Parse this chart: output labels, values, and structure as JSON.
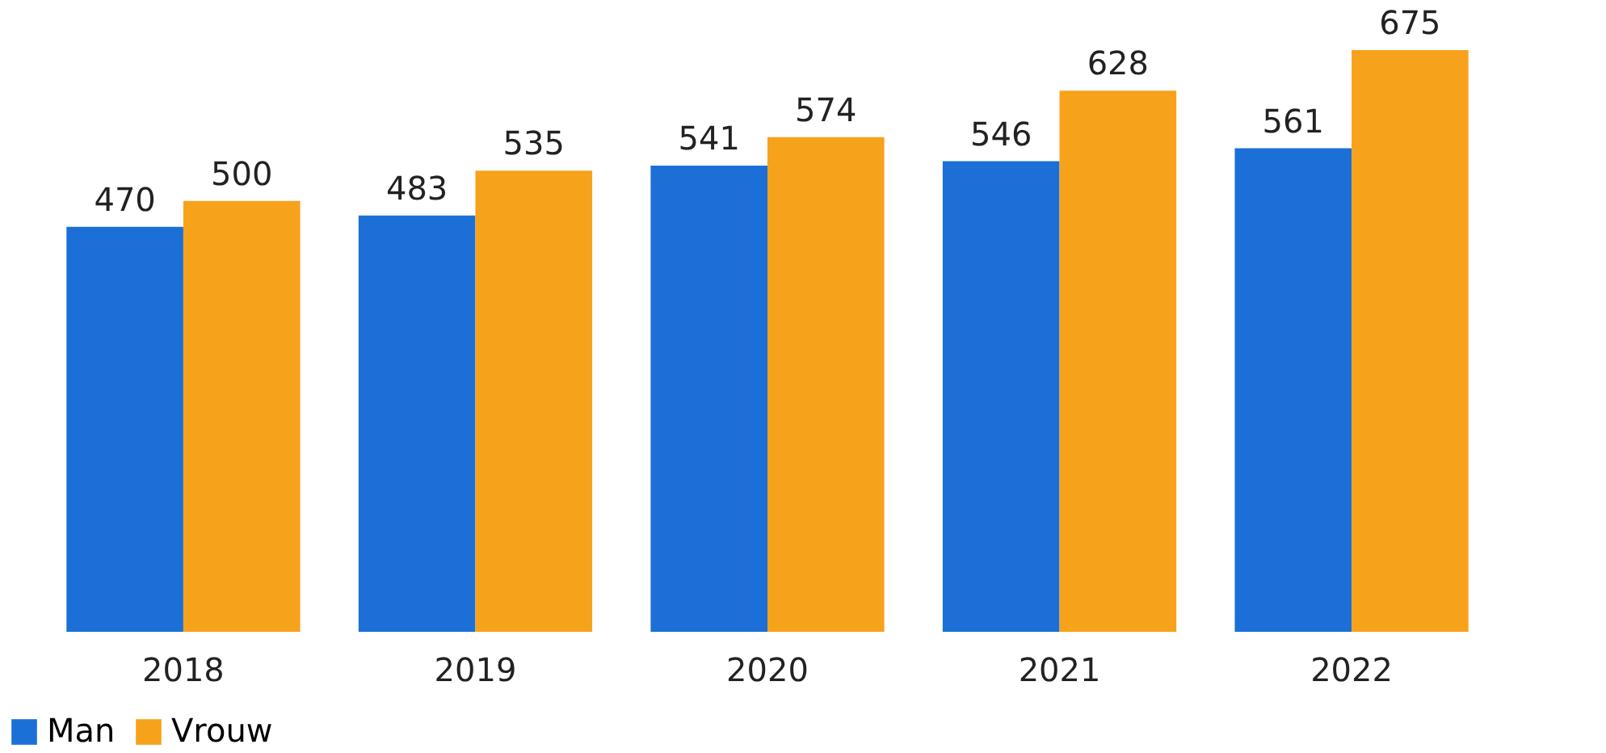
{
  "chart_data": {
    "type": "bar",
    "categories": [
      "2018",
      "2019",
      "2020",
      "2021",
      "2022"
    ],
    "series": [
      {
        "name": "Man",
        "color": "#1b6fd6",
        "values": [
          470,
          483,
          541,
          546,
          561
        ]
      },
      {
        "name": "Vrouw",
        "color": "#f7a21b",
        "values": [
          500,
          535,
          574,
          628,
          675
        ]
      }
    ],
    "data_labels": true,
    "legend": "bottom",
    "grid": false
  }
}
